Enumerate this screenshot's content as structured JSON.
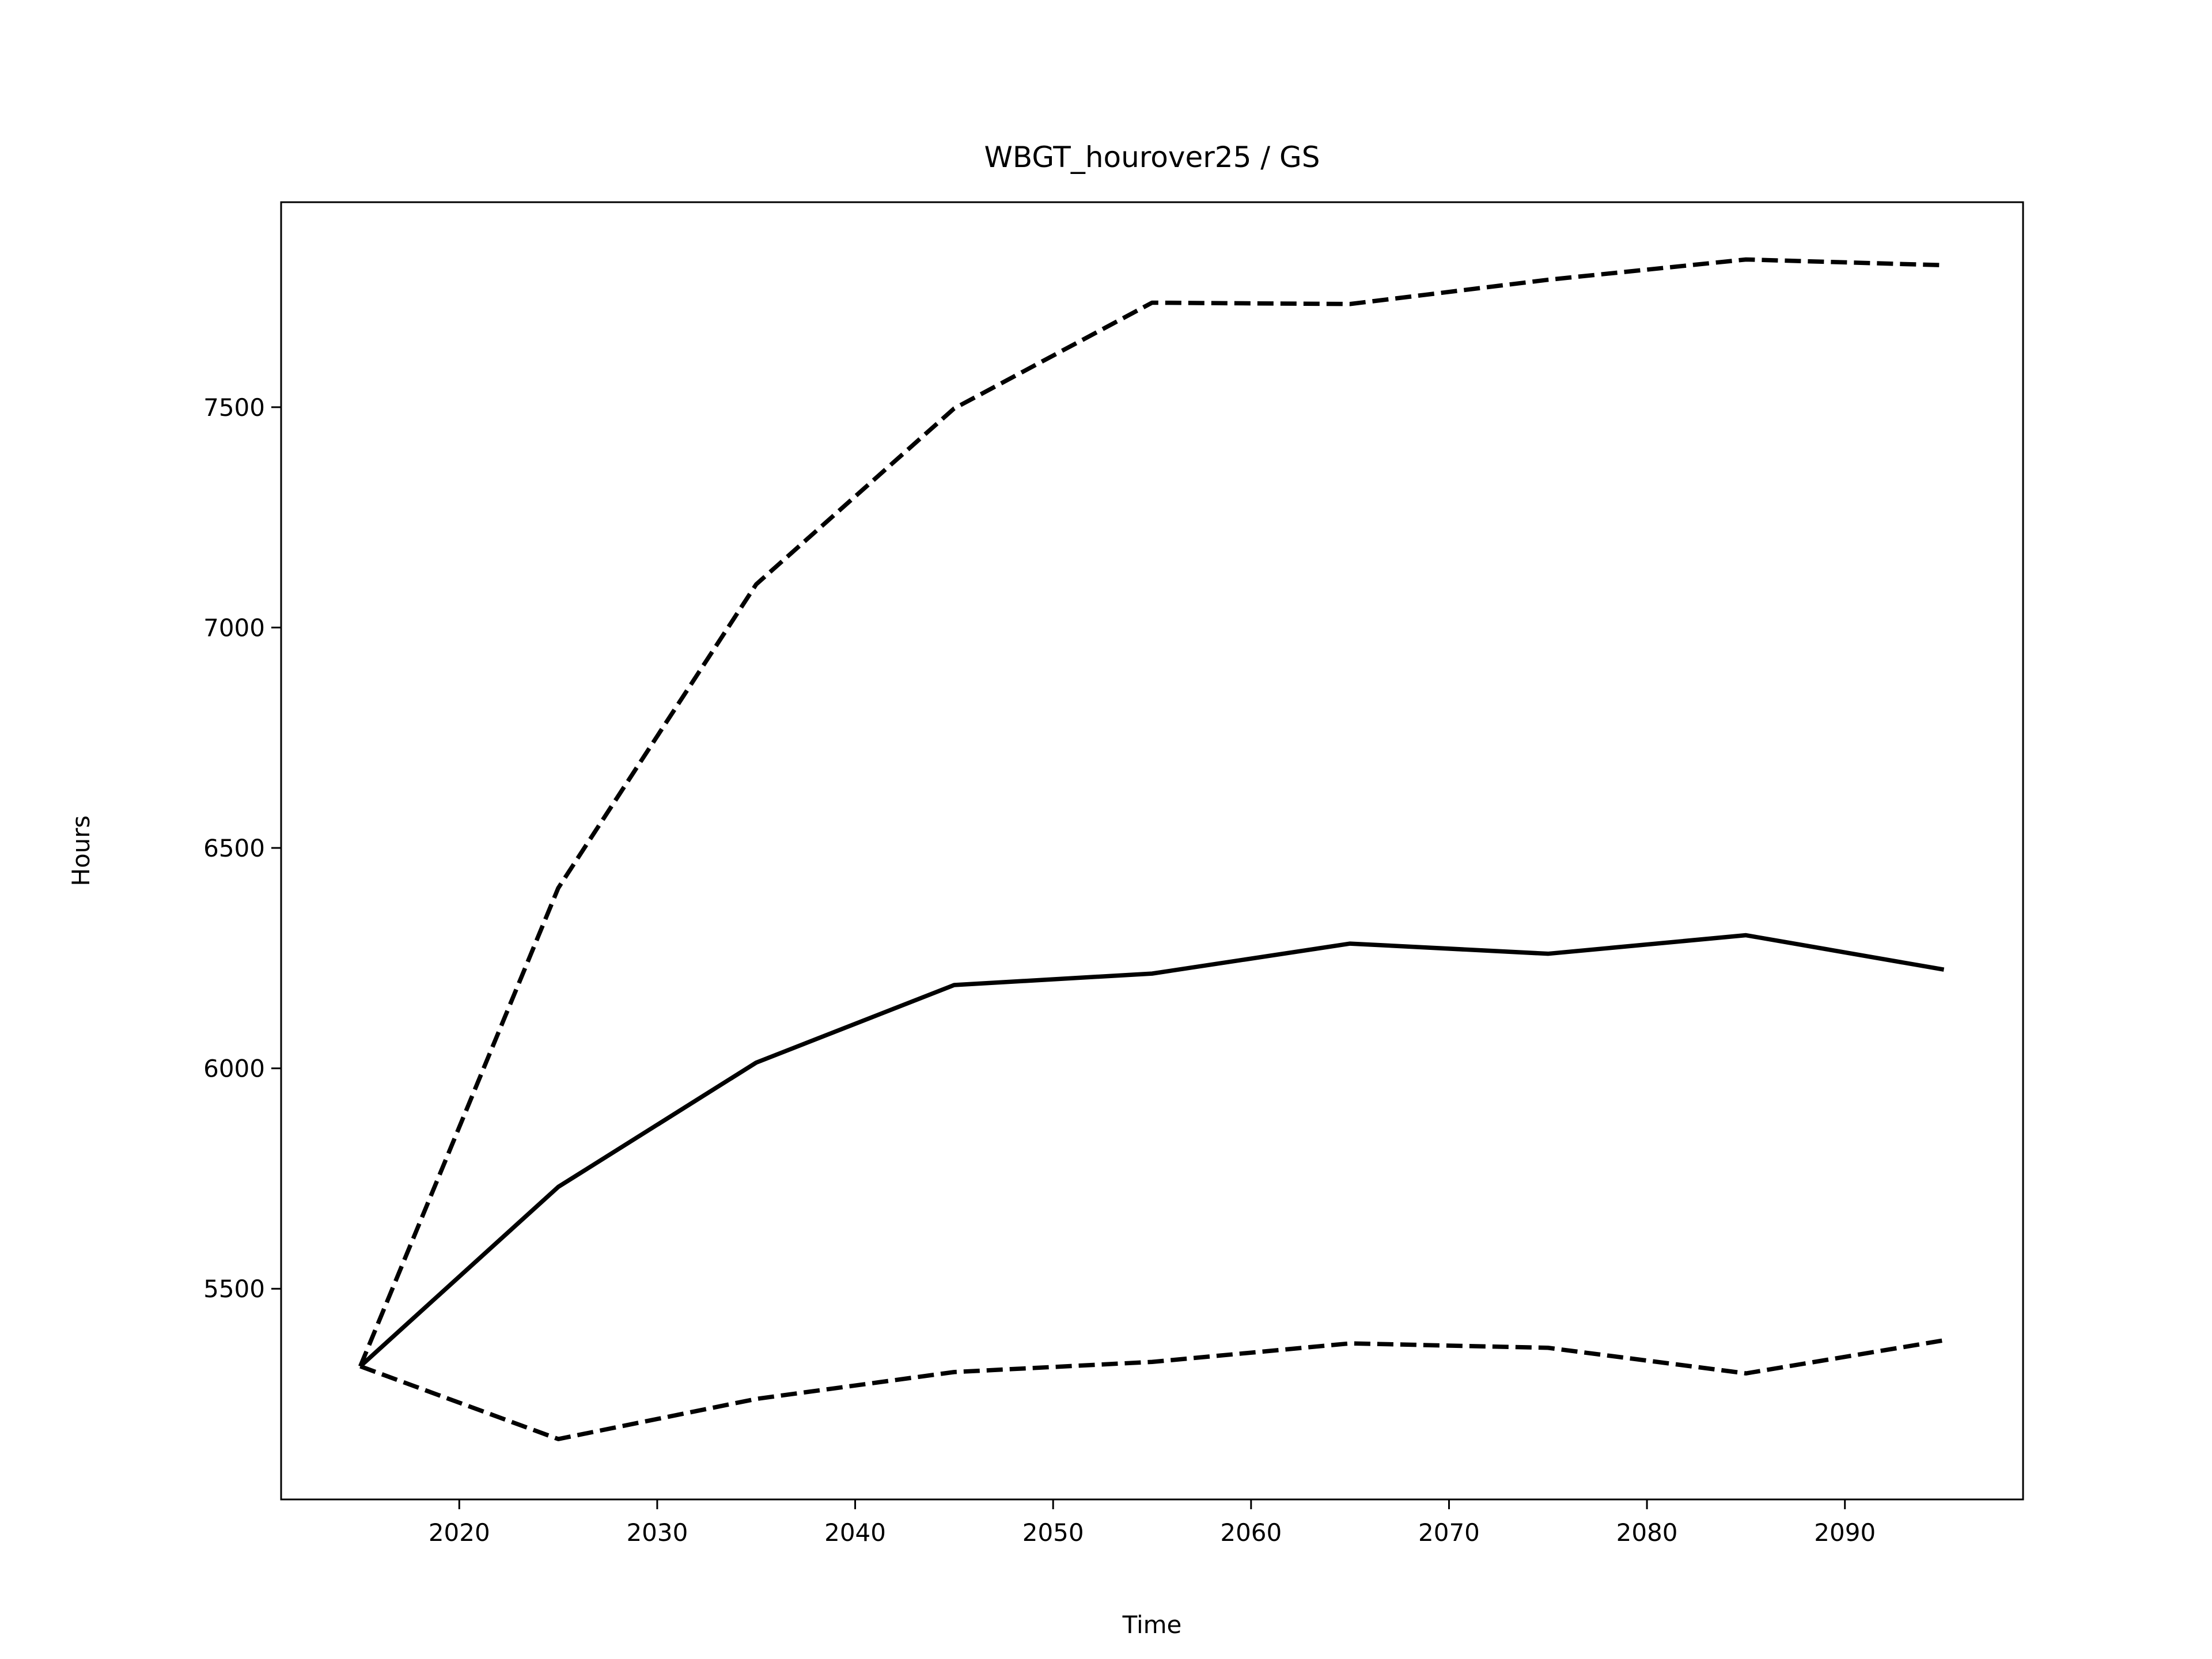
{
  "chart_data": {
    "type": "line",
    "title": "WBGT_hourover25 / GS",
    "x_label": "Time",
    "y_label": "Hours",
    "x": [
      2015,
      2025,
      2035,
      2045,
      2055,
      2065,
      2075,
      2085,
      2095
    ],
    "series": [
      {
        "color": "#000000",
        "style": "dashed",
        "values": [
          5324,
          6409,
          7098,
          7497,
          7737,
          7734,
          7789,
          7835,
          7822
        ]
      },
      {
        "color": "#000000",
        "style": "solid",
        "values": [
          5324,
          5731,
          6013,
          6189,
          6215,
          6283,
          6260,
          6302,
          6224
        ]
      },
      {
        "color": "#000000",
        "style": "dashed",
        "values": [
          5324,
          5159,
          5250,
          5311,
          5334,
          5376,
          5366,
          5308,
          5383
        ]
      }
    ],
    "xlim": [
      2011,
      2099
    ],
    "xticks": [
      2020,
      2030,
      2040,
      2050,
      2060,
      2070,
      2080,
      2090
    ],
    "ylim": [
      5022,
      7965
    ],
    "yticks": [
      5500,
      6000,
      6500,
      7000,
      7500
    ],
    "grid": false
  }
}
